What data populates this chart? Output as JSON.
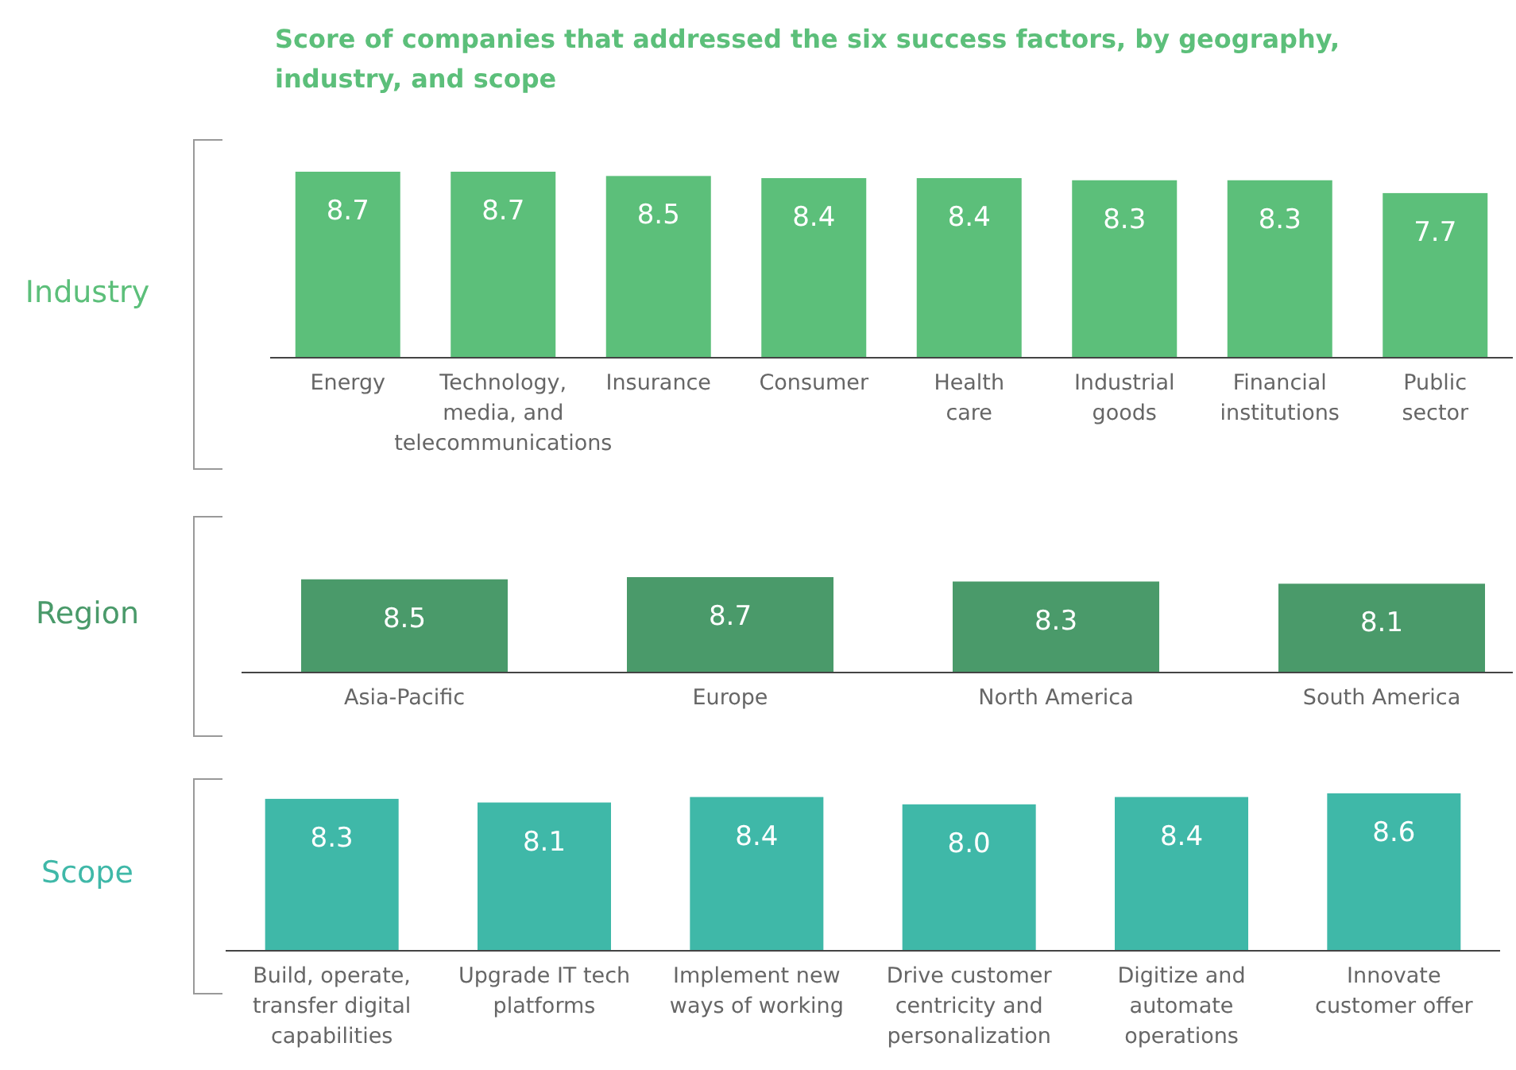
{
  "chart_data": [
    {
      "type": "bar",
      "title": "Score of companies that addressed the six success factors, by geography, industry, and scope",
      "ylabel": "Industry",
      "categories": [
        "Energy",
        "Technology, media, and telecommunications",
        "Insurance",
        "Consumer",
        "Health care",
        "Industrial goods",
        "Financial institutions",
        "Public sector"
      ],
      "values": [
        8.7,
        8.7,
        8.5,
        8.4,
        8.4,
        8.3,
        8.3,
        7.7
      ],
      "color": "#5cbf7a",
      "data_labels": true
    },
    {
      "type": "bar",
      "ylabel": "Region",
      "categories": [
        "Asia-Pacific",
        "Europe",
        "North America",
        "South America"
      ],
      "values": [
        8.5,
        8.7,
        8.3,
        8.1
      ],
      "color": "#4a9a6a",
      "data_labels": true
    },
    {
      "type": "bar",
      "ylabel": "Scope",
      "categories": [
        "Build, operate, transfer digital capabilities",
        "Upgrade IT tech platforms",
        "Implement new ways of working",
        "Drive customer centricity and personalization",
        "Digitize and automate operations",
        "Innovate customer offer"
      ],
      "values": [
        8.3,
        8.1,
        8.4,
        8.0,
        8.4,
        8.6
      ],
      "value_labels": [
        "8.3",
        "8.1",
        "8.4",
        "8.0",
        "8.4",
        "8.6"
      ],
      "color": "#3fb8a8"
    }
  ]
}
